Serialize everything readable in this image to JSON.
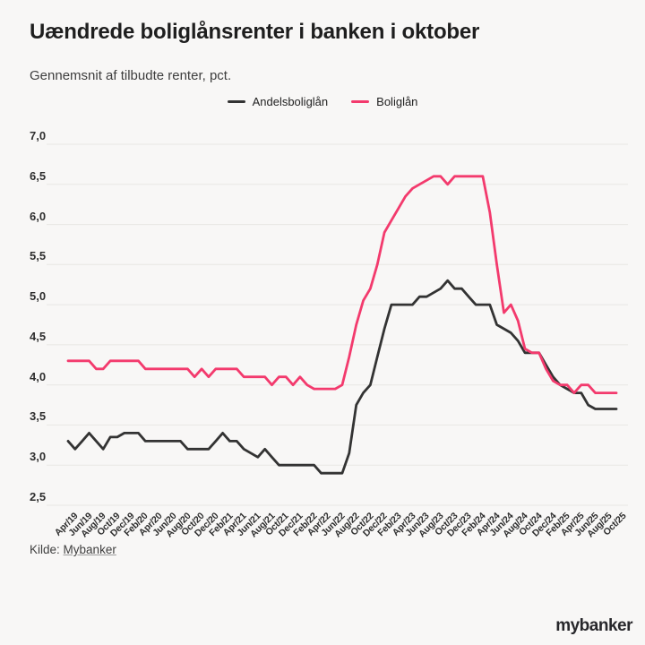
{
  "title": "Uændrede boliglånsrenter i banken i oktober",
  "subtitle": "Gennemsnit af tilbudte renter, pct.",
  "legend": [
    {
      "id": "andelsboliglan",
      "label": "Andelsboliglån",
      "color": "#333333"
    },
    {
      "id": "boliglan",
      "label": "Boliglån",
      "color": "#f33a6d"
    }
  ],
  "source": {
    "prefix": "Kilde:",
    "link_text": "Mybanker"
  },
  "logo_text": "mybanker",
  "colors": {
    "background": "#f8f7f6",
    "grid": "#e8e7e4",
    "tick_text": "#2e2e2e"
  },
  "chart_data": {
    "type": "line",
    "title": "Uændrede boliglånsrenter i banken i oktober",
    "ylabel": "Gennemsnit af tilbudte renter, pct.",
    "ylim": [
      2.5,
      7.0
    ],
    "ytick_labels": [
      "7,0",
      "6,5",
      "6,0",
      "5,5",
      "5,0",
      "4,5",
      "4,0",
      "3,5",
      "3,0",
      "2,5"
    ],
    "grid": true,
    "legend_position": "top-center",
    "tick_every": 2,
    "months": [
      "Apr/19",
      "May/19",
      "Jun/19",
      "Jul/19",
      "Aug/19",
      "Sep/19",
      "Oct/19",
      "Nov/19",
      "Dec/19",
      "Jan/20",
      "Feb/20",
      "Mar/20",
      "Apr/20",
      "May/20",
      "Jun/20",
      "Jul/20",
      "Aug/20",
      "Sep/20",
      "Oct/20",
      "Nov/20",
      "Dec/20",
      "Jan/21",
      "Feb/21",
      "Mar/21",
      "Apr/21",
      "May/21",
      "Jun/21",
      "Jul/21",
      "Aug/21",
      "Sep/21",
      "Oct/21",
      "Nov/21",
      "Dec/21",
      "Jan/22",
      "Feb/22",
      "Mar/22",
      "Apr/22",
      "May/22",
      "Jun/22",
      "Jul/22",
      "Aug/22",
      "Sep/22",
      "Oct/22",
      "Nov/22",
      "Dec/22",
      "Jan/23",
      "Feb/23",
      "Mar/23",
      "Apr/23",
      "May/23",
      "Jun/23",
      "Jul/23",
      "Aug/23",
      "Sep/23",
      "Oct/23",
      "Nov/23",
      "Dec/23",
      "Jan/24",
      "Feb/24",
      "Mar/24",
      "Apr/24",
      "May/24",
      "Jun/24",
      "Jul/24",
      "Aug/24",
      "Sep/24",
      "Oct/24",
      "Nov/24",
      "Dec/24",
      "Jan/25",
      "Feb/25",
      "Mar/25",
      "Apr/25",
      "May/25",
      "Jun/25",
      "Jul/25",
      "Aug/25",
      "Sep/25",
      "Oct/25"
    ],
    "series": [
      {
        "id": "andelsboliglan",
        "name": "Andelsboliglån",
        "color": "#333333",
        "values": [
          3.3,
          3.2,
          3.3,
          3.4,
          3.3,
          3.2,
          3.35,
          3.35,
          3.4,
          3.4,
          3.4,
          3.3,
          3.3,
          3.3,
          3.3,
          3.3,
          3.3,
          3.2,
          3.2,
          3.2,
          3.2,
          3.3,
          3.4,
          3.3,
          3.3,
          3.2,
          3.15,
          3.1,
          3.2,
          3.1,
          3.0,
          3.0,
          3.0,
          3.0,
          3.0,
          3.0,
          2.9,
          2.9,
          2.9,
          2.9,
          3.15,
          3.75,
          3.9,
          4.0,
          4.35,
          4.7,
          5.0,
          5.0,
          5.0,
          5.0,
          5.1,
          5.1,
          5.15,
          5.2,
          5.3,
          5.2,
          5.2,
          5.1,
          5.0,
          5.0,
          5.0,
          4.75,
          4.7,
          4.65,
          4.55,
          4.4,
          4.4,
          4.4,
          4.25,
          4.1,
          4.0,
          3.95,
          3.9,
          3.9,
          3.75,
          3.7,
          3.7,
          3.7,
          3.7
        ]
      },
      {
        "id": "boliglan",
        "name": "Boliglån",
        "color": "#f33a6d",
        "values": [
          4.3,
          4.3,
          4.3,
          4.3,
          4.2,
          4.2,
          4.3,
          4.3,
          4.3,
          4.3,
          4.3,
          4.2,
          4.2,
          4.2,
          4.2,
          4.2,
          4.2,
          4.2,
          4.1,
          4.2,
          4.1,
          4.2,
          4.2,
          4.2,
          4.2,
          4.1,
          4.1,
          4.1,
          4.1,
          4.0,
          4.1,
          4.1,
          4.0,
          4.1,
          4.0,
          3.95,
          3.95,
          3.95,
          3.95,
          4.0,
          4.35,
          4.75,
          5.05,
          5.2,
          5.5,
          5.9,
          6.05,
          6.2,
          6.35,
          6.45,
          6.5,
          6.55,
          6.6,
          6.6,
          6.5,
          6.6,
          6.6,
          6.6,
          6.6,
          6.6,
          6.15,
          5.5,
          4.9,
          5.0,
          4.8,
          4.45,
          4.4,
          4.4,
          4.2,
          4.05,
          4.0,
          4.0,
          3.9,
          4.0,
          4.0,
          3.9,
          3.9,
          3.9,
          3.9
        ]
      }
    ]
  }
}
